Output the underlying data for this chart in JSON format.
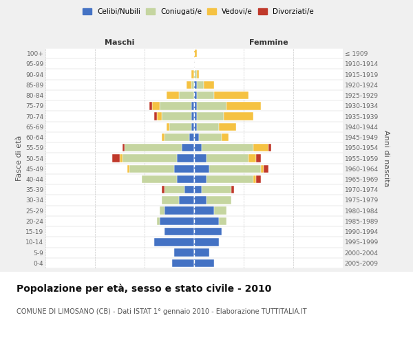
{
  "age_groups": [
    "100+",
    "95-99",
    "90-94",
    "85-89",
    "80-84",
    "75-79",
    "70-74",
    "65-69",
    "60-64",
    "55-59",
    "50-54",
    "45-49",
    "40-44",
    "35-39",
    "30-34",
    "25-29",
    "20-24",
    "15-19",
    "10-14",
    "5-9",
    "0-4"
  ],
  "birth_years": [
    "≤ 1909",
    "1910-1914",
    "1915-1919",
    "1920-1924",
    "1925-1929",
    "1930-1934",
    "1935-1939",
    "1940-1944",
    "1945-1949",
    "1950-1954",
    "1955-1959",
    "1960-1964",
    "1965-1969",
    "1970-1974",
    "1975-1979",
    "1980-1984",
    "1985-1989",
    "1990-1994",
    "1995-1999",
    "2000-2004",
    "2005-2009"
  ],
  "colors": {
    "celibi": "#4472c4",
    "coniugati": "#c5d5a0",
    "vedovi": "#f5c242",
    "divorziati": "#c0392b"
  },
  "males": {
    "celibi": [
      0,
      0,
      0,
      0,
      0,
      1,
      1,
      1,
      2,
      5,
      7,
      8,
      7,
      4,
      6,
      12,
      14,
      12,
      16,
      8,
      9
    ],
    "coniugati": [
      0,
      0,
      0,
      1,
      6,
      13,
      12,
      9,
      10,
      23,
      22,
      18,
      14,
      8,
      7,
      2,
      1,
      0,
      0,
      0,
      0
    ],
    "vedovi": [
      0,
      0,
      1,
      2,
      5,
      3,
      2,
      1,
      1,
      0,
      1,
      1,
      0,
      0,
      0,
      0,
      0,
      0,
      0,
      0,
      0
    ],
    "divorziati": [
      0,
      0,
      0,
      0,
      0,
      1,
      1,
      0,
      0,
      1,
      3,
      0,
      0,
      1,
      0,
      0,
      0,
      0,
      0,
      0,
      0
    ]
  },
  "females": {
    "celibi": [
      0,
      0,
      0,
      1,
      1,
      1,
      1,
      1,
      2,
      3,
      5,
      6,
      5,
      3,
      5,
      8,
      10,
      11,
      10,
      6,
      8
    ],
    "coniugati": [
      0,
      0,
      1,
      3,
      7,
      12,
      11,
      9,
      9,
      21,
      17,
      21,
      19,
      12,
      10,
      5,
      3,
      0,
      0,
      0,
      0
    ],
    "vedovi": [
      1,
      0,
      1,
      4,
      14,
      14,
      12,
      7,
      3,
      6,
      3,
      1,
      1,
      0,
      0,
      0,
      0,
      0,
      0,
      0,
      0
    ],
    "divorziati": [
      0,
      0,
      0,
      0,
      0,
      0,
      0,
      0,
      0,
      1,
      2,
      2,
      2,
      1,
      0,
      0,
      0,
      0,
      0,
      0,
      0
    ]
  },
  "xlim": 60,
  "title": "Popolazione per età, sesso e stato civile - 2010",
  "subtitle": "COMUNE DI LIMOSANO (CB) - Dati ISTAT 1° gennaio 2010 - Elaborazione TUTTITALIA.IT",
  "ylabel_left": "Fasce di età",
  "ylabel_right": "Anni di nascita",
  "xlabel_maschi": "Maschi",
  "xlabel_femmine": "Femmine",
  "legend_labels": [
    "Celibi/Nubili",
    "Coniugati/e",
    "Vedovi/e",
    "Divorziati/e"
  ],
  "bg_color": "#f0f0f0",
  "plot_bg": "#ffffff",
  "grid_color": "#cccccc",
  "title_fontsize": 10,
  "subtitle_fontsize": 7,
  "tick_fontsize": 6.5,
  "label_fontsize": 8
}
